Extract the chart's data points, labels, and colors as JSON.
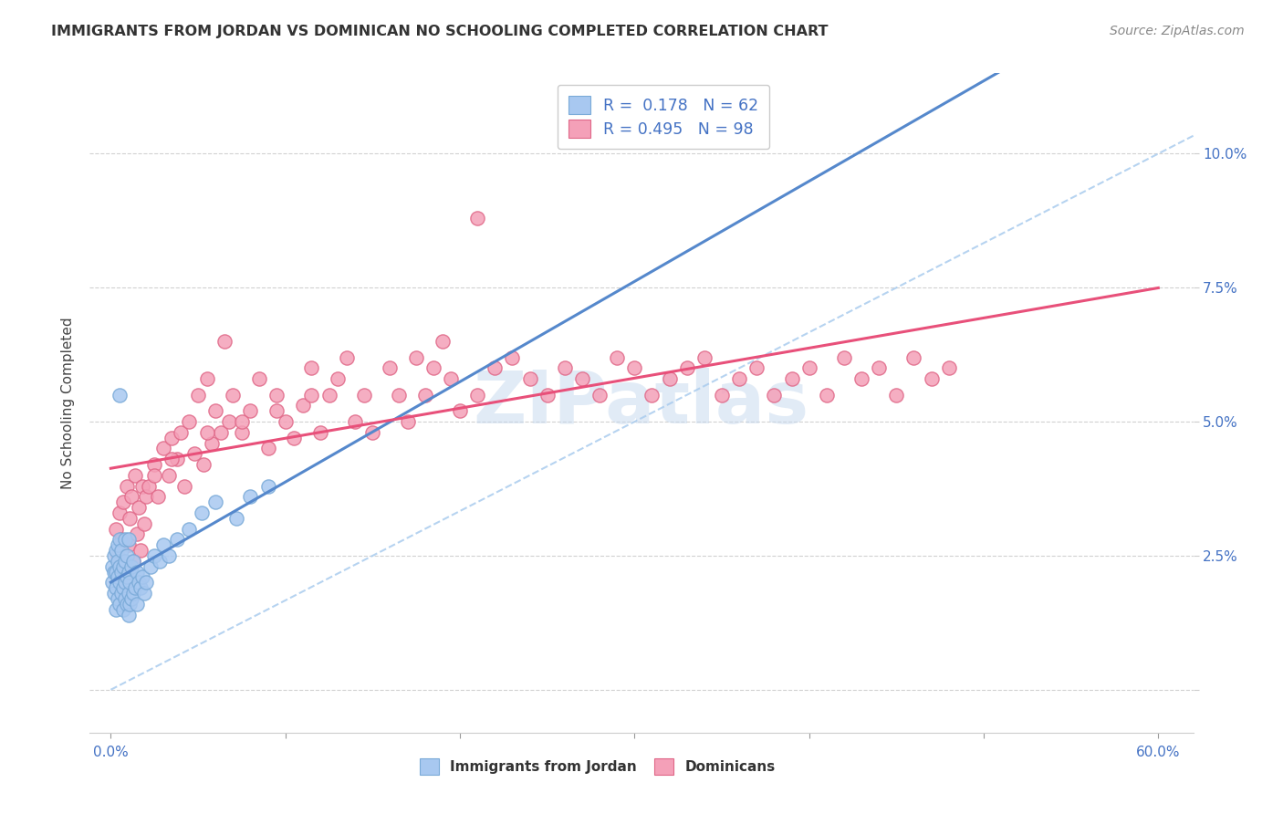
{
  "title": "IMMIGRANTS FROM JORDAN VS DOMINICAN NO SCHOOLING COMPLETED CORRELATION CHART",
  "source": "Source: ZipAtlas.com",
  "ylabel": "No Schooling Completed",
  "legend_r1": "R=  0.178",
  "legend_n1": "N = 62",
  "legend_r2": "R= 0.495",
  "legend_n2": "N = 98",
  "jordan_color": "#a8c8f0",
  "jordan_edge": "#7aaad8",
  "dominican_color": "#f4a0b8",
  "dominican_edge": "#e06888",
  "jordan_line_color": "#5588cc",
  "dominican_line_color": "#e8507a",
  "diag_line_color": "#aaccee",
  "watermark": "ZIPatlas",
  "background_color": "#ffffff",
  "xlim": [
    -0.012,
    0.62
  ],
  "ylim": [
    -0.008,
    0.115
  ]
}
